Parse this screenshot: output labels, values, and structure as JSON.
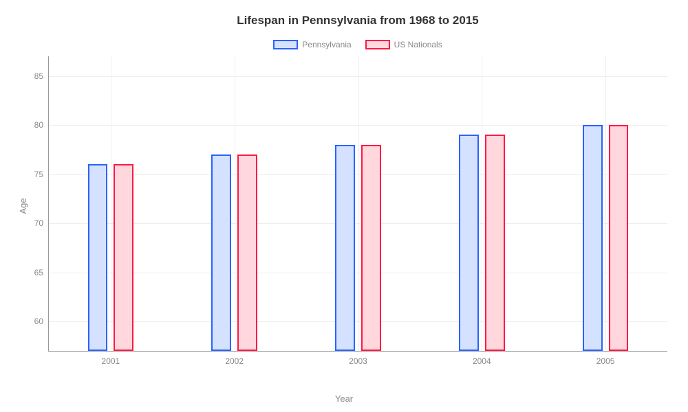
{
  "chart": {
    "type": "bar",
    "title": "Lifespan in Pennsylvania from 1968 to 2015",
    "title_fontsize": 17,
    "xlabel": "Year",
    "ylabel": "Age",
    "label_fontsize": 13,
    "tick_fontsize": 12,
    "background_color": "#ffffff",
    "grid_color": "#eeeeee",
    "axis_color": "#999999",
    "text_color": "#888888",
    "categories": [
      "2001",
      "2002",
      "2003",
      "2004",
      "2005"
    ],
    "series": [
      {
        "name": "Pennsylvania",
        "values": [
          76,
          77,
          78,
          79,
          80
        ],
        "border_color": "#2962ff",
        "fill_color": "#d5e2ff"
      },
      {
        "name": "US Nationals",
        "values": [
          76,
          77,
          78,
          79,
          80
        ],
        "border_color": "#ff1744",
        "fill_color": "#ffd7dd"
      }
    ],
    "ylim": [
      57,
      87
    ],
    "yticks": [
      60,
      65,
      70,
      75,
      80,
      85
    ],
    "bar_width_pct": 3.2,
    "bar_gap_pct": 1.0,
    "group_positions_pct": [
      10,
      30,
      50,
      70,
      90
    ],
    "legend_swatch_border_width": 2
  }
}
